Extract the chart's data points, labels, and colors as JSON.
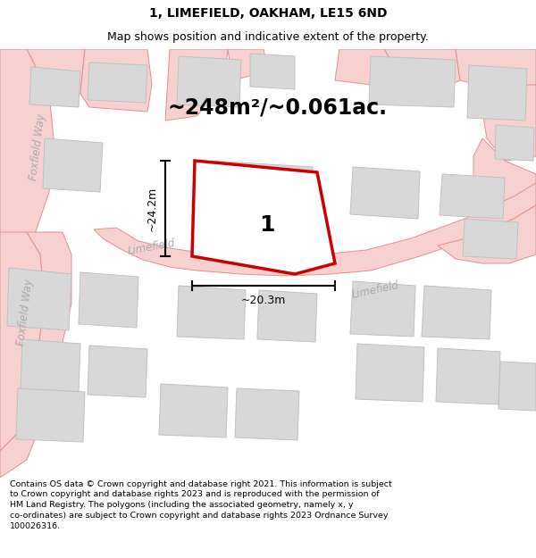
{
  "title": "1, LIMEFIELD, OAKHAM, LE15 6ND",
  "subtitle": "Map shows position and indicative extent of the property.",
  "area_text": "~248m²/~0.061ac.",
  "dim_vertical": "~24.2m",
  "dim_horizontal": "~20.3m",
  "label_number": "1",
  "road_fill": "#f7d0d0",
  "road_edge": "#e09090",
  "building_fill": "#d8d8d8",
  "building_edge": "#c0c0c0",
  "plot_edge": "#cc0000",
  "plot_lw": 2.5,
  "street_color": "#aaaaaa",
  "footer_text": "Contains OS data © Crown copyright and database right 2021. This information is subject to Crown copyright and database rights 2023 and is reproduced with the permission of HM Land Registry. The polygons (including the associated geometry, namely x, y co-ordinates) are subject to Crown copyright and database rights 2023 Ordnance Survey 100026316.",
  "figsize": [
    6.0,
    6.25
  ],
  "dpi": 100,
  "map_xlim": [
    0,
    600
  ],
  "map_ylim": [
    0,
    480
  ],
  "title_fontsize": 10,
  "subtitle_fontsize": 9,
  "area_fontsize": 17,
  "label_fontsize": 18,
  "street_fontsize": 8.5,
  "dim_fontsize": 9,
  "footer_fontsize": 6.8
}
